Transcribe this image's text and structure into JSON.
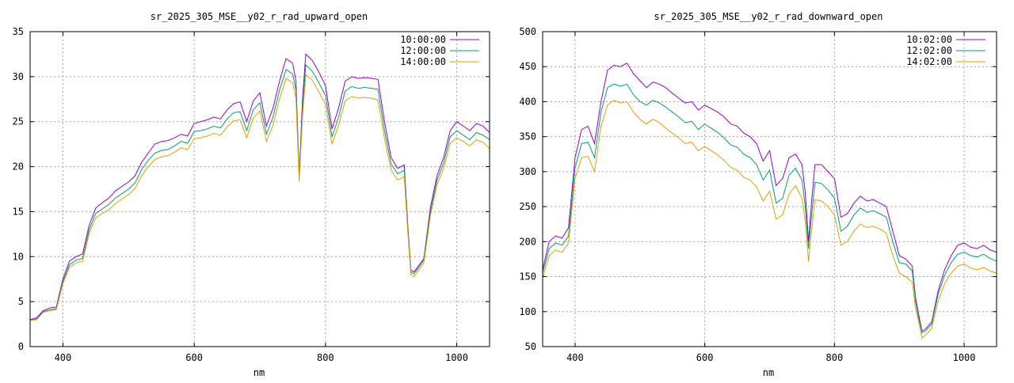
{
  "chart_data": [
    {
      "type": "line",
      "title": "sr_2025_305_MSE__y02_r_rad_upward_open",
      "xlabel": "nm",
      "ylabel": "",
      "xlim": [
        350,
        1050
      ],
      "ylim": [
        0,
        35
      ],
      "xticks": [
        400,
        600,
        800,
        1000
      ],
      "yticks": [
        0,
        5,
        10,
        15,
        20,
        25,
        30,
        35
      ],
      "grid": true,
      "legend_position": "top-right",
      "x": [
        350,
        360,
        370,
        380,
        390,
        400,
        410,
        420,
        430,
        440,
        450,
        460,
        470,
        480,
        490,
        500,
        510,
        520,
        530,
        540,
        550,
        560,
        570,
        580,
        590,
        600,
        610,
        620,
        630,
        640,
        650,
        660,
        670,
        680,
        690,
        700,
        710,
        720,
        730,
        740,
        750,
        755,
        760,
        765,
        770,
        780,
        790,
        800,
        810,
        820,
        830,
        840,
        850,
        860,
        870,
        880,
        890,
        900,
        910,
        920,
        925,
        930,
        935,
        940,
        950,
        960,
        970,
        980,
        990,
        1000,
        1010,
        1020,
        1030,
        1040,
        1050
      ],
      "series": [
        {
          "name": "10:00:00",
          "color": "#9400d3",
          "values": [
            3.0,
            3.2,
            4.0,
            4.3,
            4.4,
            7.5,
            9.5,
            10.0,
            10.3,
            13.5,
            15.4,
            16.0,
            16.5,
            17.3,
            17.8,
            18.3,
            19.0,
            20.5,
            21.5,
            22.5,
            22.8,
            22.9,
            23.2,
            23.6,
            23.4,
            24.8,
            25.0,
            25.2,
            25.5,
            25.3,
            26.3,
            27.0,
            27.2,
            25.0,
            27.3,
            28.2,
            24.5,
            26.5,
            29.5,
            32.0,
            31.5,
            29.5,
            19.0,
            27.5,
            32.5,
            31.8,
            30.5,
            29.0,
            24.2,
            26.5,
            29.5,
            30.0,
            29.8,
            29.9,
            29.8,
            29.7,
            25.0,
            21.0,
            19.8,
            20.2,
            14.0,
            8.5,
            8.3,
            8.8,
            9.8,
            15.5,
            19.0,
            21.0,
            24.0,
            25.0,
            24.5,
            24.0,
            24.8,
            24.5,
            23.8
          ]
        },
        {
          "name": "12:00:00",
          "color": "#009e73",
          "values": [
            2.9,
            3.1,
            3.9,
            4.1,
            4.2,
            7.2,
            9.1,
            9.6,
            9.8,
            13.0,
            14.8,
            15.3,
            15.8,
            16.5,
            17.0,
            17.5,
            18.2,
            19.7,
            20.7,
            21.5,
            21.8,
            21.9,
            22.3,
            22.8,
            22.6,
            23.9,
            24.0,
            24.2,
            24.5,
            24.3,
            25.3,
            26.0,
            26.1,
            24.0,
            26.3,
            27.1,
            23.6,
            25.5,
            28.5,
            30.8,
            30.3,
            28.5,
            18.8,
            26.5,
            31.3,
            30.6,
            29.3,
            27.9,
            23.3,
            25.5,
            28.4,
            28.9,
            28.7,
            28.8,
            28.7,
            28.6,
            24.0,
            20.3,
            19.2,
            19.6,
            13.6,
            8.3,
            8.1,
            8.6,
            9.6,
            15.0,
            18.5,
            20.4,
            23.3,
            24.0,
            23.5,
            23.0,
            23.8,
            23.5,
            23.0
          ]
        },
        {
          "name": "14:00:00",
          "color": "#e69f00",
          "values": [
            2.9,
            3.0,
            3.8,
            4.0,
            4.1,
            7.0,
            8.8,
            9.3,
            9.5,
            12.6,
            14.3,
            14.8,
            15.2,
            15.9,
            16.4,
            16.9,
            17.6,
            19.0,
            20.0,
            20.8,
            21.1,
            21.2,
            21.6,
            22.1,
            21.9,
            23.1,
            23.2,
            23.4,
            23.7,
            23.5,
            24.4,
            25.1,
            25.2,
            23.2,
            25.4,
            26.2,
            22.8,
            24.6,
            27.5,
            29.8,
            29.3,
            27.6,
            18.3,
            25.6,
            30.2,
            29.6,
            28.3,
            26.9,
            22.5,
            24.6,
            27.3,
            27.8,
            27.6,
            27.7,
            27.6,
            27.4,
            23.1,
            19.6,
            18.5,
            18.9,
            13.2,
            8.0,
            7.8,
            8.3,
            9.3,
            14.6,
            18.0,
            19.8,
            22.6,
            23.2,
            22.8,
            22.3,
            23.0,
            22.7,
            22.0
          ]
        }
      ]
    },
    {
      "type": "line",
      "title": "sr_2025_305_MSE__y02_r_rad_downward_open",
      "xlabel": "nm",
      "ylabel": "",
      "xlim": [
        350,
        1050
      ],
      "ylim": [
        50,
        500
      ],
      "xticks": [
        400,
        600,
        800,
        1000
      ],
      "yticks": [
        50,
        100,
        150,
        200,
        250,
        300,
        350,
        400,
        450,
        500
      ],
      "grid": true,
      "legend_position": "top-right",
      "x": [
        350,
        360,
        370,
        380,
        390,
        400,
        410,
        420,
        430,
        440,
        450,
        460,
        470,
        480,
        490,
        500,
        510,
        520,
        530,
        540,
        550,
        560,
        570,
        580,
        590,
        600,
        610,
        620,
        630,
        640,
        650,
        660,
        670,
        680,
        690,
        700,
        710,
        720,
        730,
        740,
        750,
        755,
        760,
        765,
        770,
        780,
        790,
        800,
        810,
        820,
        830,
        840,
        850,
        860,
        870,
        880,
        890,
        900,
        910,
        920,
        925,
        930,
        935,
        940,
        950,
        960,
        970,
        980,
        990,
        1000,
        1010,
        1020,
        1030,
        1040,
        1050
      ],
      "series": [
        {
          "name": "10:02:00",
          "color": "#9400d3",
          "values": [
            160,
            200,
            208,
            205,
            220,
            320,
            360,
            365,
            340,
            400,
            445,
            452,
            450,
            455,
            440,
            430,
            420,
            428,
            425,
            420,
            412,
            405,
            398,
            400,
            388,
            395,
            390,
            385,
            378,
            368,
            365,
            355,
            350,
            340,
            315,
            330,
            280,
            290,
            320,
            325,
            310,
            270,
            200,
            260,
            310,
            310,
            300,
            290,
            235,
            240,
            255,
            265,
            258,
            260,
            255,
            250,
            215,
            180,
            175,
            165,
            120,
            95,
            72,
            75,
            85,
            130,
            160,
            180,
            195,
            198,
            192,
            190,
            195,
            188,
            185
          ]
        },
        {
          "name": "12:02:00",
          "color": "#009e73",
          "values": [
            155,
            190,
            198,
            195,
            208,
            305,
            340,
            342,
            320,
            385,
            420,
            425,
            422,
            425,
            410,
            400,
            395,
            402,
            398,
            392,
            385,
            378,
            370,
            372,
            360,
            368,
            362,
            356,
            348,
            338,
            335,
            325,
            320,
            310,
            288,
            302,
            255,
            262,
            295,
            305,
            288,
            250,
            190,
            240,
            285,
            283,
            274,
            262,
            215,
            222,
            238,
            248,
            242,
            244,
            240,
            235,
            200,
            170,
            168,
            158,
            115,
            90,
            70,
            72,
            82,
            125,
            152,
            170,
            182,
            185,
            180,
            178,
            182,
            176,
            172
          ]
        },
        {
          "name": "14:02:00",
          "color": "#e69f00",
          "values": [
            148,
            180,
            188,
            185,
            198,
            290,
            320,
            322,
            300,
            365,
            395,
            402,
            398,
            400,
            385,
            375,
            368,
            375,
            370,
            362,
            355,
            348,
            340,
            342,
            330,
            336,
            330,
            324,
            316,
            306,
            302,
            292,
            288,
            278,
            258,
            272,
            232,
            238,
            268,
            280,
            262,
            228,
            172,
            218,
            260,
            258,
            250,
            238,
            195,
            200,
            215,
            225,
            220,
            222,
            218,
            212,
            180,
            155,
            150,
            142,
            105,
            85,
            62,
            66,
            76,
            115,
            140,
            155,
            165,
            168,
            162,
            160,
            163,
            158,
            155
          ]
        }
      ]
    }
  ]
}
